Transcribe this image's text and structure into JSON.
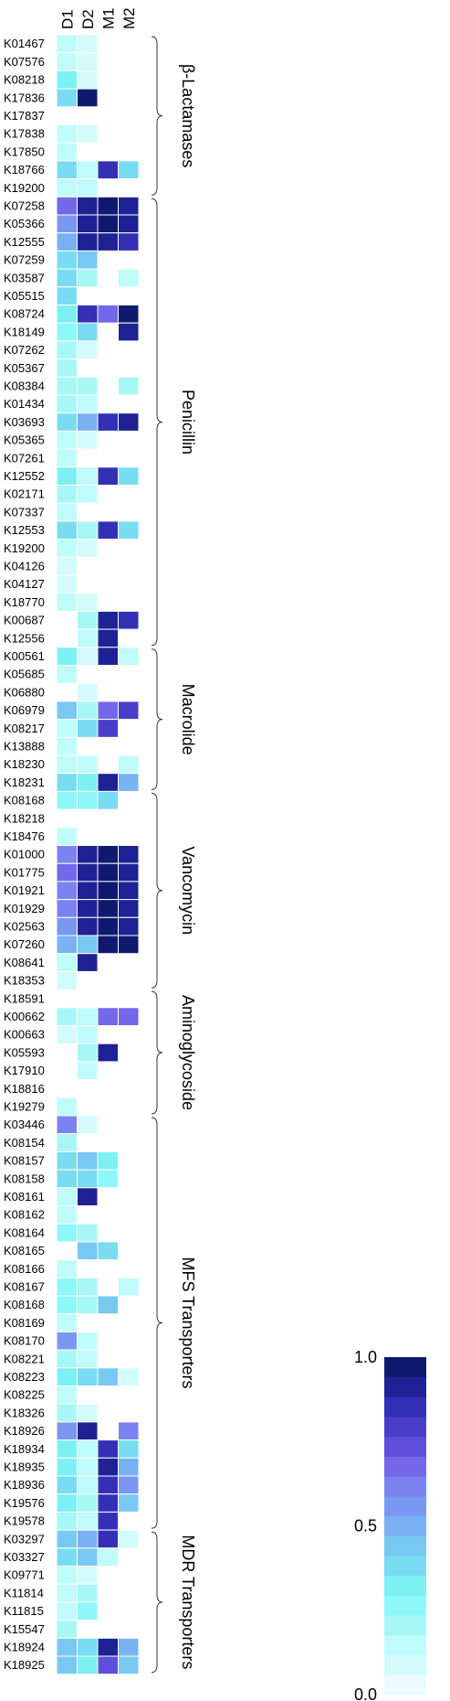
{
  "chart_data": {
    "type": "heatmap",
    "columns": [
      "D1",
      "D2",
      "M1",
      "M2"
    ],
    "rows": [
      {
        "id": "K01467",
        "values": [
          0.15,
          0.05,
          null,
          null
        ]
      },
      {
        "id": "K07576",
        "values": [
          0.12,
          0.04,
          null,
          null
        ]
      },
      {
        "id": "K08218",
        "values": [
          0.3,
          0.06,
          null,
          null
        ]
      },
      {
        "id": "K17836",
        "values": [
          0.35,
          1.0,
          null,
          null
        ]
      },
      {
        "id": "K17837",
        "values": [
          null,
          null,
          null,
          null
        ]
      },
      {
        "id": "K17838",
        "values": [
          0.1,
          0.04,
          null,
          null
        ]
      },
      {
        "id": "K17850",
        "values": [
          0.1,
          null,
          null,
          null
        ]
      },
      {
        "id": "K18766",
        "values": [
          0.4,
          0.15,
          0.85,
          0.35
        ]
      },
      {
        "id": "K19200",
        "values": [
          0.15,
          0.1,
          null,
          null
        ]
      },
      {
        "id": "K07258",
        "values": [
          0.7,
          0.95,
          0.97,
          0.92
        ]
      },
      {
        "id": "K05366",
        "values": [
          0.55,
          0.95,
          0.98,
          0.92
        ]
      },
      {
        "id": "K12555",
        "values": [
          0.5,
          0.95,
          0.95,
          0.9
        ]
      },
      {
        "id": "K07259",
        "values": [
          0.4,
          0.45,
          null,
          null
        ]
      },
      {
        "id": "K03587",
        "values": [
          0.35,
          0.2,
          null,
          0.1
        ]
      },
      {
        "id": "K05515",
        "values": [
          0.35,
          null,
          null,
          null
        ]
      },
      {
        "id": "K08724",
        "values": [
          0.3,
          0.9,
          0.7,
          1.0
        ]
      },
      {
        "id": "K18149",
        "values": [
          0.25,
          0.4,
          null,
          0.95
        ]
      },
      {
        "id": "K07262",
        "values": [
          0.2,
          0.08,
          null,
          null
        ]
      },
      {
        "id": "K05367",
        "values": [
          0.2,
          null,
          null,
          null
        ]
      },
      {
        "id": "K08384",
        "values": [
          0.2,
          0.2,
          null,
          0.2
        ]
      },
      {
        "id": "K01434",
        "values": [
          0.2,
          0.15,
          null,
          null
        ]
      },
      {
        "id": "K03693",
        "values": [
          0.35,
          0.5,
          0.9,
          0.92
        ]
      },
      {
        "id": "K05365",
        "values": [
          0.15,
          0.05,
          null,
          null
        ]
      },
      {
        "id": "K07261",
        "values": [
          0.12,
          null,
          null,
          null
        ]
      },
      {
        "id": "K12552",
        "values": [
          0.3,
          0.15,
          0.85,
          0.4
        ]
      },
      {
        "id": "K02171",
        "values": [
          0.2,
          0.15,
          null,
          null
        ]
      },
      {
        "id": "K07337",
        "values": [
          0.15,
          null,
          null,
          null
        ]
      },
      {
        "id": "K12553",
        "values": [
          0.4,
          0.2,
          0.85,
          0.35
        ]
      },
      {
        "id": "K19200",
        "values": [
          0.1,
          0.08,
          null,
          null
        ]
      },
      {
        "id": "K04126",
        "values": [
          0.08,
          null,
          null,
          null
        ]
      },
      {
        "id": "K04127",
        "values": [
          0.06,
          null,
          null,
          null
        ]
      },
      {
        "id": "K18770",
        "values": [
          0.1,
          0.05,
          null,
          null
        ]
      },
      {
        "id": "K00687",
        "values": [
          null,
          0.2,
          0.92,
          0.85
        ]
      },
      {
        "id": "K12556",
        "values": [
          null,
          0.1,
          0.95,
          null
        ]
      },
      {
        "id": "K00561",
        "values": [
          0.3,
          0.05,
          0.95,
          0.15
        ]
      },
      {
        "id": "K05685",
        "values": [
          0.1,
          null,
          null,
          null
        ]
      },
      {
        "id": "K06880",
        "values": [
          null,
          0.05,
          null,
          null
        ]
      },
      {
        "id": "K06979",
        "values": [
          0.45,
          0.2,
          0.7,
          0.8
        ]
      },
      {
        "id": "K08217",
        "values": [
          0.1,
          0.35,
          0.8,
          null
        ]
      },
      {
        "id": "K13888",
        "values": [
          0.15,
          null,
          null,
          null
        ]
      },
      {
        "id": "K18230",
        "values": [
          0.15,
          0.15,
          null,
          0.15
        ]
      },
      {
        "id": "K18231",
        "values": [
          0.35,
          0.3,
          0.95,
          0.5
        ]
      },
      {
        "id": "K08168",
        "values": [
          0.25,
          0.25,
          0.4,
          null
        ]
      },
      {
        "id": "K18218",
        "values": [
          null,
          null,
          null,
          null
        ]
      },
      {
        "id": "K18476",
        "values": [
          0.15,
          null,
          null,
          null
        ]
      },
      {
        "id": "K01000",
        "values": [
          0.65,
          0.95,
          0.98,
          0.95
        ]
      },
      {
        "id": "K01775",
        "values": [
          0.7,
          0.95,
          0.99,
          0.95
        ]
      },
      {
        "id": "K01921",
        "values": [
          0.6,
          0.95,
          0.99,
          0.95
        ]
      },
      {
        "id": "K01929",
        "values": [
          0.6,
          0.95,
          0.99,
          0.95
        ]
      },
      {
        "id": "K02563",
        "values": [
          0.55,
          0.95,
          0.99,
          0.95
        ]
      },
      {
        "id": "K07260",
        "values": [
          0.5,
          0.45,
          0.99,
          0.99
        ]
      },
      {
        "id": "K08641",
        "values": [
          0.15,
          0.95,
          null,
          null
        ]
      },
      {
        "id": "K18353",
        "values": [
          0.05,
          null,
          null,
          null
        ]
      },
      {
        "id": "K18591",
        "values": [
          null,
          null,
          null,
          null
        ]
      },
      {
        "id": "K00662",
        "values": [
          0.2,
          0.15,
          0.7,
          0.7
        ]
      },
      {
        "id": "K00663",
        "values": [
          0.08,
          0.1,
          null,
          null
        ]
      },
      {
        "id": "K05593",
        "values": [
          null,
          0.2,
          0.95,
          null
        ]
      },
      {
        "id": "K17910",
        "values": [
          null,
          0.15,
          null,
          null
        ]
      },
      {
        "id": "K18816",
        "values": [
          null,
          null,
          null,
          null
        ]
      },
      {
        "id": "K19279",
        "values": [
          0.15,
          null,
          null,
          null
        ]
      },
      {
        "id": "K03446",
        "values": [
          0.6,
          0.05,
          null,
          null
        ]
      },
      {
        "id": "K08154",
        "values": [
          0.2,
          null,
          null,
          null
        ]
      },
      {
        "id": "K08157",
        "values": [
          0.4,
          0.45,
          0.3,
          null
        ]
      },
      {
        "id": "K08158",
        "values": [
          0.35,
          0.4,
          0.25,
          null
        ]
      },
      {
        "id": "K08161",
        "values": [
          0.15,
          0.92,
          null,
          null
        ]
      },
      {
        "id": "K08162",
        "values": [
          0.1,
          null,
          null,
          null
        ]
      },
      {
        "id": "K08164",
        "values": [
          0.25,
          0.2,
          null,
          null
        ]
      },
      {
        "id": "K08165",
        "values": [
          null,
          0.45,
          0.35,
          null
        ]
      },
      {
        "id": "K08166",
        "values": [
          0.15,
          null,
          null,
          null
        ]
      },
      {
        "id": "K08167",
        "values": [
          0.25,
          0.2,
          null,
          0.15
        ]
      },
      {
        "id": "K08168",
        "values": [
          0.25,
          0.2,
          0.45,
          null
        ]
      },
      {
        "id": "K08169",
        "values": [
          0.15,
          null,
          null,
          null
        ]
      },
      {
        "id": "K08170",
        "values": [
          0.55,
          0.15,
          null,
          null
        ]
      },
      {
        "id": "K08221",
        "values": [
          0.2,
          0.15,
          null,
          null
        ]
      },
      {
        "id": "K08223",
        "values": [
          0.3,
          0.35,
          0.45,
          0.08
        ]
      },
      {
        "id": "K08225",
        "values": [
          0.15,
          null,
          null,
          null
        ]
      },
      {
        "id": "K18326",
        "values": [
          0.2,
          0.05,
          null,
          null
        ]
      },
      {
        "id": "K18926",
        "values": [
          0.55,
          0.95,
          null,
          0.65
        ]
      },
      {
        "id": "K18934",
        "values": [
          0.3,
          0.15,
          0.9,
          0.4
        ]
      },
      {
        "id": "K18935",
        "values": [
          0.3,
          0.15,
          0.92,
          0.5
        ]
      },
      {
        "id": "K18936",
        "values": [
          0.35,
          0.15,
          0.9,
          0.55
        ]
      },
      {
        "id": "K19576",
        "values": [
          0.3,
          0.2,
          0.85,
          0.45
        ]
      },
      {
        "id": "K19578",
        "values": [
          0.2,
          0.15,
          0.85,
          null
        ]
      },
      {
        "id": "K03297",
        "values": [
          0.45,
          0.5,
          0.85,
          0.08
        ]
      },
      {
        "id": "K03327",
        "values": [
          0.4,
          0.45,
          0.1,
          null
        ]
      },
      {
        "id": "K09771",
        "values": [
          0.15,
          0.05,
          null,
          null
        ]
      },
      {
        "id": "K11814",
        "values": [
          0.1,
          0.2,
          null,
          null
        ]
      },
      {
        "id": "K11815",
        "values": [
          0.1,
          0.25,
          null,
          null
        ]
      },
      {
        "id": "K15547",
        "values": [
          0.2,
          null,
          null,
          null
        ]
      },
      {
        "id": "K18924",
        "values": [
          0.45,
          0.4,
          0.95,
          0.5
        ]
      },
      {
        "id": "K18925",
        "values": [
          0.45,
          0.3,
          0.75,
          0.45
        ]
      }
    ],
    "groups": [
      {
        "label": "β-Lactamases",
        "start": 0,
        "end": 8
      },
      {
        "label": "Penicillin",
        "start": 9,
        "end": 33
      },
      {
        "label": "Macrolide",
        "start": 34,
        "end": 41
      },
      {
        "label": "Vancomycin",
        "start": 42,
        "end": 52
      },
      {
        "label": "Aminoglycoside",
        "start": 53,
        "end": 59
      },
      {
        "label": "MFS Transporters",
        "start": 60,
        "end": 82
      },
      {
        "label": "MDR Transporters",
        "start": 83,
        "end": 90
      }
    ],
    "colorbar": {
      "range": [
        0,
        1
      ],
      "ticks": [
        "0.0",
        "0.5",
        "1.0"
      ],
      "tick_values": [
        0,
        0.5,
        1.0
      ],
      "colors": [
        "#ebfbff",
        "#d3fbfb",
        "#c0fbfb",
        "#a8f7f7",
        "#8ef7f7",
        "#7df0f3",
        "#79dcf2",
        "#79c8f2",
        "#7ab1f2",
        "#7a98f2",
        "#7c82f0",
        "#7468e8",
        "#5f4fdb",
        "#4a3ec9",
        "#3430b5",
        "#1f2294",
        "#0f1a6e"
      ]
    }
  }
}
